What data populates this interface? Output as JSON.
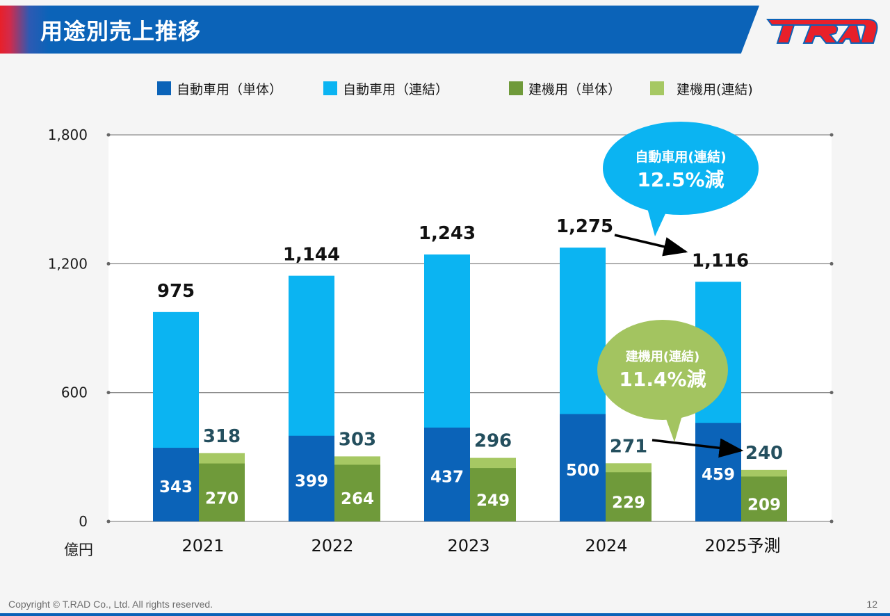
{
  "header": {
    "title": "用途別売上推移"
  },
  "footer": {
    "copyright": "Copyright © T.RAD Co., Ltd. All rights reserved.",
    "page_number": "12"
  },
  "logo": {
    "icon": "trad-logo",
    "colors": {
      "red": "#e8202a",
      "blue": "#0b63b8"
    }
  },
  "legend": [
    {
      "label": "自動車用（単体）",
      "color": "#0b63b8"
    },
    {
      "label": "自動車用（連結）",
      "color": "#0bb4f2"
    },
    {
      "label": "建機用（単体）",
      "color": "#6f9a3a"
    },
    {
      "label": "建機用(連結)",
      "color": "#a6c863"
    }
  ],
  "chart_data": {
    "type": "bar",
    "unit_label": "億円",
    "categories": [
      "2021",
      "2022",
      "2023",
      "2024",
      "2025予測"
    ],
    "ylim": [
      0,
      1800
    ],
    "yticks": [
      0,
      600,
      1200,
      1800
    ],
    "ytick_labels": [
      "0",
      "600",
      "1,200",
      "1,800"
    ],
    "grid": true,
    "legend_position": "top",
    "stacks": [
      {
        "name": "自動車用",
        "series": [
          {
            "name": "自動車用（単体）",
            "values": [
              343,
              399,
              437,
              500,
              459
            ],
            "labels": [
              "343",
              "399",
              "437",
              "500",
              "459"
            ],
            "color": "#0b63b8"
          },
          {
            "name": "自動車用（連結）",
            "totals": [
              975,
              1144,
              1243,
              1275,
              1116
            ],
            "total_labels": [
              "975",
              "1,144",
              "1,243",
              "1,275",
              "1,116"
            ],
            "color": "#0bb4f2"
          }
        ]
      },
      {
        "name": "建機用",
        "series": [
          {
            "name": "建機用（単体）",
            "values": [
              270,
              264,
              249,
              229,
              209
            ],
            "labels": [
              "270",
              "264",
              "249",
              "229",
              "209"
            ],
            "color": "#6f9a3a"
          },
          {
            "name": "建機用(連結)",
            "totals": [
              318,
              303,
              296,
              271,
              240
            ],
            "total_labels": [
              "318",
              "303",
              "296",
              "271",
              "240"
            ],
            "color": "#a6c863"
          }
        ]
      }
    ],
    "annotations": [
      {
        "line1": "自動車用(連結)",
        "line2": "12.5%減",
        "color": "#0bb4f2"
      },
      {
        "line1": "建機用(連結)",
        "line2": "11.4%減",
        "color": "#a3c460"
      }
    ]
  }
}
